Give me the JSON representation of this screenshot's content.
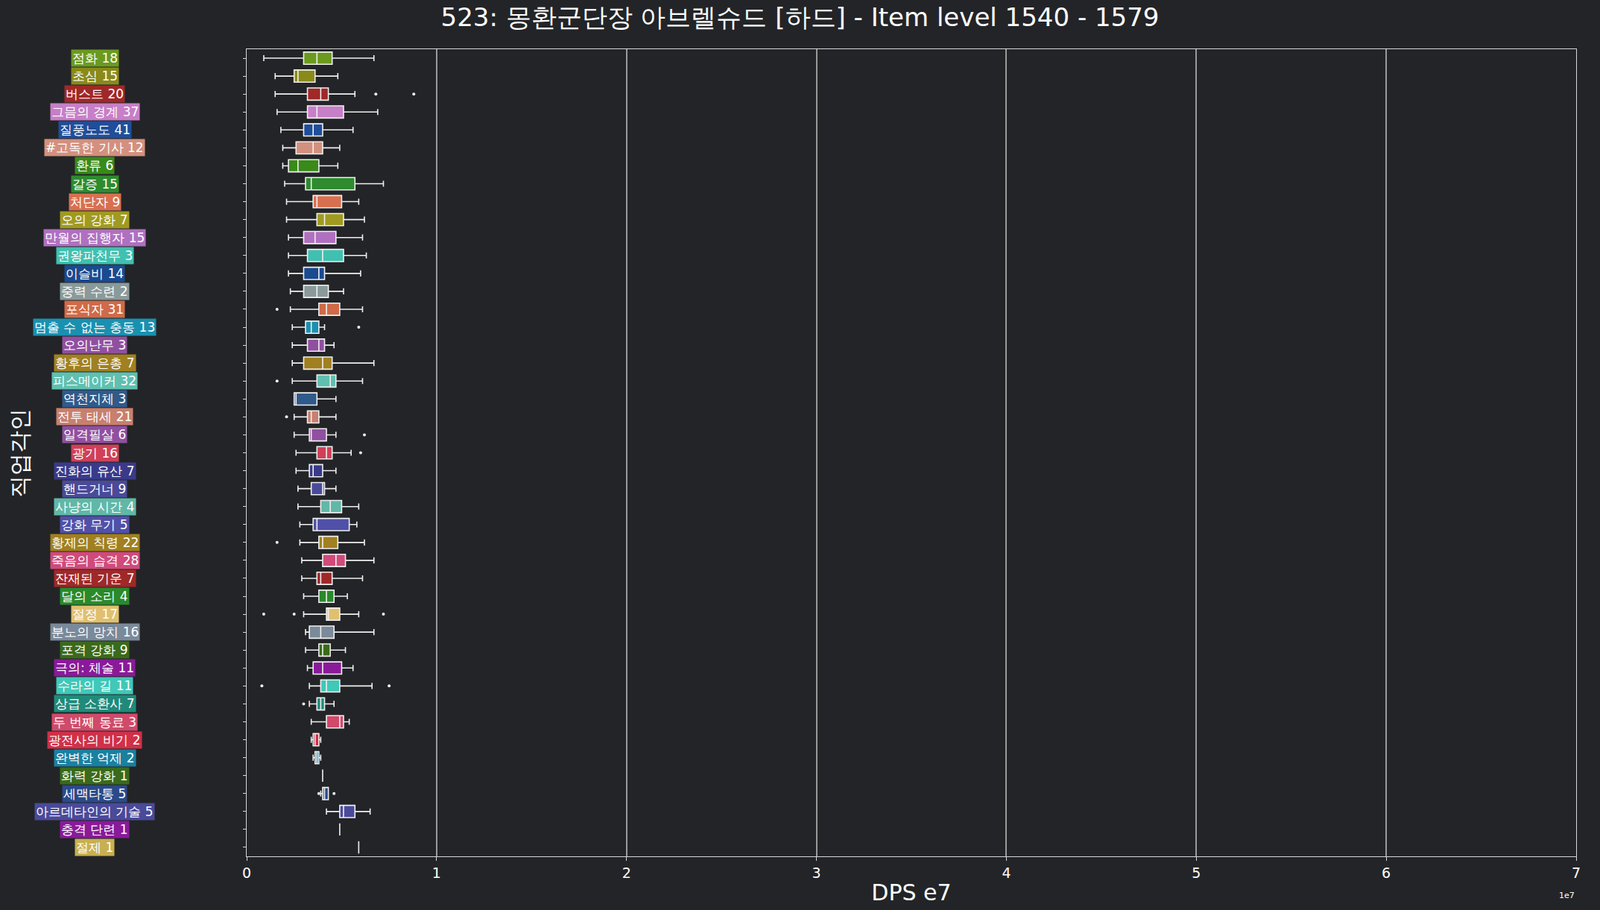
{
  "chart_data": {
    "type": "box",
    "orientation": "horizontal",
    "title": "523: 몽환군단장 아브렐슈드 [하드] - Item level 1540 - 1579",
    "x_label": "DPS e7",
    "y_label": "직업각인",
    "annotations": [
      "1e7"
    ],
    "xlim": [
      0,
      7
    ],
    "xticks": [
      0,
      1,
      2,
      3,
      4,
      5,
      6,
      7
    ],
    "grid": true,
    "categories": [
      "점화 18",
      "초심 15",
      "버스트 20",
      "그믐의 경계 37",
      "질풍노도 41",
      "#고독한 기사 12",
      "환류 6",
      "갈증 15",
      "처단자 9",
      "오의 강화 7",
      "만월의 집행자 15",
      "권왕파천무 3",
      "이슬비 14",
      "중력 수련 2",
      "포식자 31",
      "멈출 수 없는 충동 13",
      "오의난무 3",
      "황후의 은총 7",
      "피스메이커 32",
      "역천지체 3",
      "전투 태세 21",
      "일격필살 6",
      "광기 16",
      "진화의 유산 7",
      "핸드거너 9",
      "사냥의 시간 4",
      "강화 무기 5",
      "황제의 칙령 22",
      "죽음의 습격 28",
      "잔재된 기운 7",
      "달의 소리 4",
      "절정 17",
      "분노의 망치 16",
      "포격 강화 9",
      "극의: 체술 11",
      "수라의 길 11",
      "상급 소환사 7",
      "두 번째 동료 3",
      "광전사의 비기 2",
      "완벽한 억제 2",
      "화력 강화 1",
      "세맥타통 5",
      "아르데타인의 기술 5",
      "충격 단련 1",
      "절제 1"
    ],
    "colors": [
      "#6b9a1e",
      "#8a8a1a",
      "#a02828",
      "#c77fc7",
      "#1f4e9a",
      "#d4907e",
      "#3a8a1a",
      "#2e8b2e",
      "#d87050",
      "#a09a20",
      "#b070c0",
      "#40c0b0",
      "#1a4a90",
      "#8a9a9a",
      "#d06a48",
      "#1a90b0",
      "#9050a0",
      "#a08020",
      "#60c0b0",
      "#305a8a",
      "#c8806e",
      "#9050a0",
      "#d04058",
      "#3a3a8a",
      "#4a4a9a",
      "#60b8a8",
      "#5050a8",
      "#a08020",
      "#d04a7a",
      "#a02828",
      "#2a8a2a",
      "#e0c070",
      "#7a8a9a",
      "#3a6a1a",
      "#8a1a9a",
      "#40c8b8",
      "#208a7a",
      "#d04a6a",
      "#d03048",
      "#1a80a0",
      "#3a6a1a",
      "#2a4a8a",
      "#4a4a9a",
      "#8a1a9a",
      "#c8b050"
    ],
    "boxes": [
      {
        "lower_whisker": 0.09,
        "q1": 0.3,
        "median": 0.37,
        "q3": 0.45,
        "upper_whisker": 0.67,
        "outliers": []
      },
      {
        "lower_whisker": 0.15,
        "q1": 0.25,
        "median": 0.27,
        "q3": 0.36,
        "upper_whisker": 0.48,
        "outliers": []
      },
      {
        "lower_whisker": 0.15,
        "q1": 0.32,
        "median": 0.39,
        "q3": 0.43,
        "upper_whisker": 0.57,
        "outliers": [
          0.68,
          0.88
        ]
      },
      {
        "lower_whisker": 0.16,
        "q1": 0.32,
        "median": 0.37,
        "q3": 0.51,
        "upper_whisker": 0.69,
        "outliers": []
      },
      {
        "lower_whisker": 0.18,
        "q1": 0.3,
        "median": 0.35,
        "q3": 0.4,
        "upper_whisker": 0.56,
        "outliers": []
      },
      {
        "lower_whisker": 0.19,
        "q1": 0.26,
        "median": 0.35,
        "q3": 0.4,
        "upper_whisker": 0.49,
        "outliers": []
      },
      {
        "lower_whisker": 0.19,
        "q1": 0.22,
        "median": 0.27,
        "q3": 0.38,
        "upper_whisker": 0.48,
        "outliers": []
      },
      {
        "lower_whisker": 0.2,
        "q1": 0.31,
        "median": 0.34,
        "q3": 0.57,
        "upper_whisker": 0.72,
        "outliers": []
      },
      {
        "lower_whisker": 0.21,
        "q1": 0.35,
        "median": 0.37,
        "q3": 0.5,
        "upper_whisker": 0.59,
        "outliers": []
      },
      {
        "lower_whisker": 0.21,
        "q1": 0.37,
        "median": 0.41,
        "q3": 0.51,
        "upper_whisker": 0.62,
        "outliers": []
      },
      {
        "lower_whisker": 0.22,
        "q1": 0.3,
        "median": 0.36,
        "q3": 0.47,
        "upper_whisker": 0.61,
        "outliers": []
      },
      {
        "lower_whisker": 0.22,
        "q1": 0.32,
        "median": 0.4,
        "q3": 0.51,
        "upper_whisker": 0.63,
        "outliers": []
      },
      {
        "lower_whisker": 0.22,
        "q1": 0.3,
        "median": 0.38,
        "q3": 0.41,
        "upper_whisker": 0.6,
        "outliers": []
      },
      {
        "lower_whisker": 0.23,
        "q1": 0.3,
        "median": 0.37,
        "q3": 0.43,
        "upper_whisker": 0.51,
        "outliers": []
      },
      {
        "lower_whisker": 0.23,
        "q1": 0.38,
        "median": 0.42,
        "q3": 0.49,
        "upper_whisker": 0.61,
        "outliers": [
          0.16
        ]
      },
      {
        "lower_whisker": 0.24,
        "q1": 0.31,
        "median": 0.34,
        "q3": 0.38,
        "upper_whisker": 0.41,
        "outliers": [
          0.59
        ]
      },
      {
        "lower_whisker": 0.24,
        "q1": 0.32,
        "median": 0.38,
        "q3": 0.41,
        "upper_whisker": 0.46,
        "outliers": []
      },
      {
        "lower_whisker": 0.24,
        "q1": 0.3,
        "median": 0.4,
        "q3": 0.45,
        "upper_whisker": 0.67,
        "outliers": []
      },
      {
        "lower_whisker": 0.24,
        "q1": 0.37,
        "median": 0.44,
        "q3": 0.47,
        "upper_whisker": 0.61,
        "outliers": [
          0.16
        ]
      },
      {
        "lower_whisker": 0.25,
        "q1": 0.25,
        "median": 0.26,
        "q3": 0.37,
        "upper_whisker": 0.47,
        "outliers": []
      },
      {
        "lower_whisker": 0.25,
        "q1": 0.32,
        "median": 0.34,
        "q3": 0.38,
        "upper_whisker": 0.47,
        "outliers": [
          0.21
        ]
      },
      {
        "lower_whisker": 0.25,
        "q1": 0.33,
        "median": 0.34,
        "q3": 0.42,
        "upper_whisker": 0.47,
        "outliers": [
          0.62
        ]
      },
      {
        "lower_whisker": 0.26,
        "q1": 0.37,
        "median": 0.42,
        "q3": 0.45,
        "upper_whisker": 0.55,
        "outliers": [
          0.6
        ]
      },
      {
        "lower_whisker": 0.26,
        "q1": 0.33,
        "median": 0.35,
        "q3": 0.4,
        "upper_whisker": 0.47,
        "outliers": []
      },
      {
        "lower_whisker": 0.27,
        "q1": 0.34,
        "median": 0.4,
        "q3": 0.41,
        "upper_whisker": 0.47,
        "outliers": []
      },
      {
        "lower_whisker": 0.27,
        "q1": 0.39,
        "median": 0.44,
        "q3": 0.5,
        "upper_whisker": 0.59,
        "outliers": []
      },
      {
        "lower_whisker": 0.28,
        "q1": 0.35,
        "median": 0.37,
        "q3": 0.54,
        "upper_whisker": 0.58,
        "outliers": []
      },
      {
        "lower_whisker": 0.28,
        "q1": 0.38,
        "median": 0.4,
        "q3": 0.48,
        "upper_whisker": 0.62,
        "outliers": [
          0.16
        ]
      },
      {
        "lower_whisker": 0.29,
        "q1": 0.4,
        "median": 0.47,
        "q3": 0.52,
        "upper_whisker": 0.67,
        "outliers": []
      },
      {
        "lower_whisker": 0.29,
        "q1": 0.37,
        "median": 0.39,
        "q3": 0.45,
        "upper_whisker": 0.61,
        "outliers": []
      },
      {
        "lower_whisker": 0.3,
        "q1": 0.38,
        "median": 0.42,
        "q3": 0.46,
        "upper_whisker": 0.53,
        "outliers": []
      },
      {
        "lower_whisker": 0.3,
        "q1": 0.42,
        "median": 0.43,
        "q3": 0.49,
        "upper_whisker": 0.59,
        "outliers": [
          0.09,
          0.25,
          0.72
        ]
      },
      {
        "lower_whisker": 0.31,
        "q1": 0.33,
        "median": 0.39,
        "q3": 0.46,
        "upper_whisker": 0.67,
        "outliers": []
      },
      {
        "lower_whisker": 0.31,
        "q1": 0.38,
        "median": 0.4,
        "q3": 0.44,
        "upper_whisker": 0.52,
        "outliers": []
      },
      {
        "lower_whisker": 0.32,
        "q1": 0.35,
        "median": 0.4,
        "q3": 0.5,
        "upper_whisker": 0.56,
        "outliers": []
      },
      {
        "lower_whisker": 0.33,
        "q1": 0.39,
        "median": 0.42,
        "q3": 0.49,
        "upper_whisker": 0.66,
        "outliers": [
          0.08,
          0.75
        ]
      },
      {
        "lower_whisker": 0.33,
        "q1": 0.37,
        "median": 0.39,
        "q3": 0.41,
        "upper_whisker": 0.46,
        "outliers": [
          0.3
        ]
      },
      {
        "lower_whisker": 0.34,
        "q1": 0.42,
        "median": 0.49,
        "q3": 0.51,
        "upper_whisker": 0.54,
        "outliers": []
      },
      {
        "lower_whisker": 0.34,
        "q1": 0.35,
        "median": 0.36,
        "q3": 0.38,
        "upper_whisker": 0.39,
        "outliers": []
      },
      {
        "lower_whisker": 0.35,
        "q1": 0.36,
        "median": 0.37,
        "q3": 0.38,
        "upper_whisker": 0.39,
        "outliers": []
      },
      {
        "lower_whisker": 0.4,
        "q1": 0.4,
        "median": 0.4,
        "q3": 0.4,
        "upper_whisker": 0.4,
        "outliers": []
      },
      {
        "lower_whisker": 0.39,
        "q1": 0.4,
        "median": 0.41,
        "q3": 0.43,
        "upper_whisker": 0.43,
        "outliers": [
          0.38,
          0.46
        ]
      },
      {
        "lower_whisker": 0.42,
        "q1": 0.49,
        "median": 0.51,
        "q3": 0.57,
        "upper_whisker": 0.65,
        "outliers": []
      },
      {
        "lower_whisker": 0.49,
        "q1": 0.49,
        "median": 0.49,
        "q3": 0.49,
        "upper_whisker": 0.49,
        "outliers": []
      },
      {
        "lower_whisker": 0.59,
        "q1": 0.59,
        "median": 0.59,
        "q3": 0.59,
        "upper_whisker": 0.59,
        "outliers": []
      }
    ]
  }
}
